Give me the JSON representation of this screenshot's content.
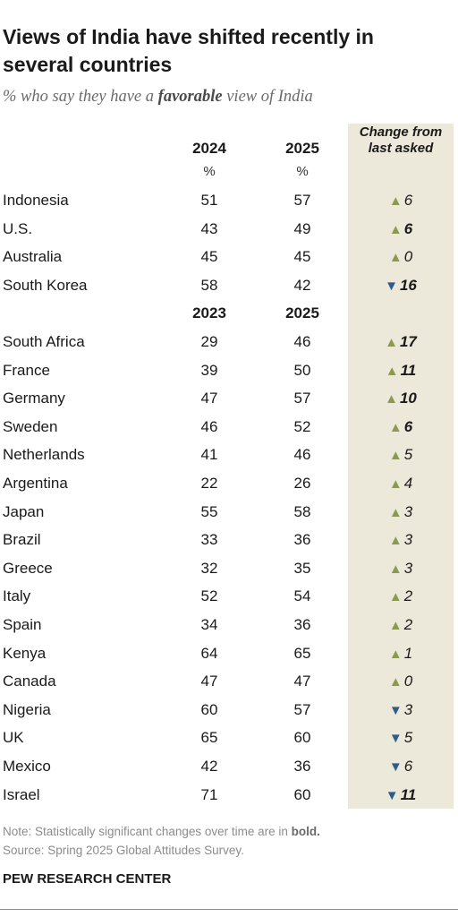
{
  "title": "Views of India have shifted recently in several countries",
  "subtitle_pre": "% who say they have a ",
  "subtitle_bold": "favorable",
  "subtitle_post": " view of India",
  "change_header": [
    "Change from",
    "last asked"
  ],
  "note_pre": "Note: Statistically significant changes over time are in ",
  "note_bold": "bold.",
  "source": "Source: Spring 2025 Global Attitudes Survey.",
  "org": "PEW RESEARCH CENTER",
  "colors": {
    "up": "#8a9a4f",
    "down": "#2f5d8a",
    "change_bg": "#ece8da"
  },
  "chart_data": {
    "type": "table",
    "groups": [
      {
        "col1": "2024",
        "col2": "2025",
        "unit1": "%",
        "unit2": "%",
        "rows": [
          {
            "country": "Indonesia",
            "v1": "51",
            "v2": "57",
            "dir": "up",
            "change": "6",
            "sig": false
          },
          {
            "country": "U.S.",
            "v1": "43",
            "v2": "49",
            "dir": "up",
            "change": "6",
            "sig": true
          },
          {
            "country": "Australia",
            "v1": "45",
            "v2": "45",
            "dir": "up",
            "change": "0",
            "sig": false
          },
          {
            "country": "South Korea",
            "v1": "58",
            "v2": "42",
            "dir": "down",
            "change": "16",
            "sig": true
          }
        ]
      },
      {
        "col1": "2023",
        "col2": "2025",
        "rows": [
          {
            "country": "South Africa",
            "v1": "29",
            "v2": "46",
            "dir": "up",
            "change": "17",
            "sig": true
          },
          {
            "country": "France",
            "v1": "39",
            "v2": "50",
            "dir": "up",
            "change": "11",
            "sig": true
          },
          {
            "country": "Germany",
            "v1": "47",
            "v2": "57",
            "dir": "up",
            "change": "10",
            "sig": true
          },
          {
            "country": "Sweden",
            "v1": "46",
            "v2": "52",
            "dir": "up",
            "change": "6",
            "sig": true
          },
          {
            "country": "Netherlands",
            "v1": "41",
            "v2": "46",
            "dir": "up",
            "change": "5",
            "sig": false
          },
          {
            "country": "Argentina",
            "v1": "22",
            "v2": "26",
            "dir": "up",
            "change": "4",
            "sig": false
          },
          {
            "country": "Japan",
            "v1": "55",
            "v2": "58",
            "dir": "up",
            "change": "3",
            "sig": false
          },
          {
            "country": "Brazil",
            "v1": "33",
            "v2": "36",
            "dir": "up",
            "change": "3",
            "sig": false
          },
          {
            "country": "Greece",
            "v1": "32",
            "v2": "35",
            "dir": "up",
            "change": "3",
            "sig": false
          },
          {
            "country": "Italy",
            "v1": "52",
            "v2": "54",
            "dir": "up",
            "change": "2",
            "sig": false
          },
          {
            "country": "Spain",
            "v1": "34",
            "v2": "36",
            "dir": "up",
            "change": "2",
            "sig": false
          },
          {
            "country": "Kenya",
            "v1": "64",
            "v2": "65",
            "dir": "up",
            "change": "1",
            "sig": false
          },
          {
            "country": "Canada",
            "v1": "47",
            "v2": "47",
            "dir": "up",
            "change": "0",
            "sig": false
          },
          {
            "country": "Nigeria",
            "v1": "60",
            "v2": "57",
            "dir": "down",
            "change": "3",
            "sig": false
          },
          {
            "country": "UK",
            "v1": "65",
            "v2": "60",
            "dir": "down",
            "change": "5",
            "sig": false
          },
          {
            "country": "Mexico",
            "v1": "42",
            "v2": "36",
            "dir": "down",
            "change": "6",
            "sig": false
          },
          {
            "country": "Israel",
            "v1": "71",
            "v2": "60",
            "dir": "down",
            "change": "11",
            "sig": true
          }
        ]
      }
    ]
  }
}
